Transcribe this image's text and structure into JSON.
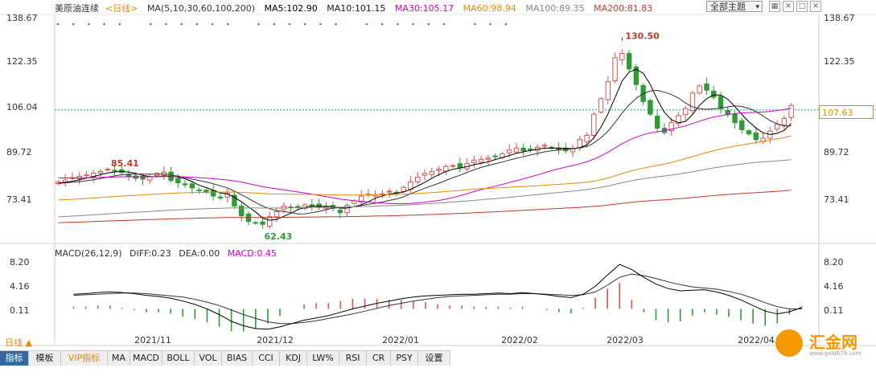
{
  "header": {
    "symbol": "美原油连续",
    "period_tag": "<日线>",
    "ma_label": "MA(5,10,30,60,100,200)",
    "ma_values": [
      {
        "text": "MA5:102.90",
        "color": "#000000"
      },
      {
        "text": "MA10:101.15",
        "color": "#1a1a1a"
      },
      {
        "text": "MA30:105.17",
        "color": "#cc00cc"
      },
      {
        "text": "MA60:98.94",
        "color": "#e58a00"
      },
      {
        "text": "MA100:89.35",
        "color": "#888888"
      },
      {
        "text": "MA200:81.83",
        "color": "#c0392b"
      }
    ],
    "topic_button": "全部主题",
    "toolbar_icons": [
      "grid-icon",
      "close-small-icon",
      "maximize-icon",
      "close-icon"
    ]
  },
  "price_axis": {
    "ticks": [
      "138.67",
      "122.35",
      "106.04",
      "89.72",
      "73.41"
    ]
  },
  "current_price": "107.63",
  "macd": {
    "label": "MACD(26,12,9)",
    "diff": "DIFF:0.23",
    "dea": "DEA:0.00",
    "macd": "MACD:0.45",
    "ticks": [
      "8.20",
      "4.16",
      "0.11"
    ]
  },
  "period_tab": "日线",
  "tabs": [
    "指标",
    "模板",
    "VIP指标",
    "MA",
    "MACD",
    "BOLL",
    "VOL",
    "BIAS",
    "CCI",
    "KDJ",
    "LW%",
    "RSI",
    "CR",
    "PSY",
    "设置"
  ],
  "watermark": {
    "name": "汇金网",
    "url": "www.gold678.com"
  },
  "colors": {
    "up": "#d9534f",
    "down": "#2e9b34",
    "ma5": "#000000",
    "ma10": "#333333",
    "ma30": "#cc00cc",
    "ma60": "#e58a00",
    "ma100": "#888888",
    "ma200": "#c0392b",
    "refline": "#2f8fa3",
    "dots": "#2f8fa3"
  },
  "chart_data": [
    {
      "type": "candlestick",
      "title": "美原油连续 日线",
      "x_labels": [
        "2021/11",
        "2021/12",
        "2022/01",
        "2022/02",
        "2022/03",
        "2022/04"
      ],
      "ylim": [
        62.43,
        138.67
      ],
      "y_ticks": [
        138.67,
        122.35,
        106.04,
        89.72,
        73.41
      ],
      "reference_line": 106.04,
      "annotations": [
        {
          "text": "130.50",
          "value": 130.5,
          "kind": "high"
        },
        {
          "text": "85.41",
          "value": 85.41,
          "kind": "high"
        },
        {
          "text": "62.43",
          "value": 62.43,
          "kind": "low"
        }
      ],
      "close_path": [
        80.5,
        81.2,
        82.0,
        82.5,
        83.0,
        83.6,
        84.2,
        85.0,
        84.5,
        83.8,
        82.6,
        81.8,
        81.5,
        82.4,
        83.5,
        84.0,
        81.0,
        80.2,
        79.5,
        78.4,
        77.6,
        76.8,
        75.5,
        74.8,
        76.5,
        72.0,
        68.5,
        66.5,
        66.0,
        65.5,
        68.2,
        70.0,
        72.0,
        71.5,
        71.8,
        72.4,
        72.0,
        71.5,
        71.8,
        71.2,
        69.6,
        72.2,
        73.8,
        75.5,
        76.2,
        76.0,
        76.3,
        77.2,
        76.8,
        78.6,
        80.5,
        82.2,
        83.5,
        84.2,
        85.0,
        86.0,
        86.3,
        85.5,
        87.0,
        88.2,
        88.5,
        89.0,
        89.5,
        90.5,
        91.8,
        92.5,
        91.5,
        92.0,
        92.8,
        93.5,
        92.5,
        91.8,
        91.5,
        92.2,
        95.5,
        97.0,
        104.5,
        110.0,
        116.0,
        124.5,
        126.0,
        120.5,
        115.0,
        109.0,
        104.5,
        99.5,
        98.0,
        101.5,
        104.0,
        106.5,
        112.0,
        114.5,
        113.0,
        110.5,
        106.5,
        104.5,
        101.5,
        99.0,
        97.5,
        95.5,
        96.0,
        98.5,
        101.0,
        103.0,
        107.6
      ],
      "moving_averages": {
        "MA5": 102.9,
        "MA10": 101.15,
        "MA30": 105.17,
        "MA60": 98.94,
        "MA100": 89.35,
        "MA200": 81.83
      }
    },
    {
      "type": "bar",
      "title": "MACD(26,12,9)",
      "ylim": [
        -4.5,
        8.2
      ],
      "y_ticks": [
        8.2,
        4.16,
        0.11
      ],
      "series": [
        {
          "name": "DIFF",
          "last": 0.23
        },
        {
          "name": "DEA",
          "last": 0.0
        },
        {
          "name": "MACD",
          "last": 0.45
        }
      ],
      "diff_path": [
        2.6,
        2.7,
        2.9,
        3.0,
        2.9,
        2.7,
        2.4,
        2.2,
        1.9,
        1.4,
        0.8,
        0.0,
        -1.0,
        -2.2,
        -3.0,
        -3.5,
        -3.6,
        -3.2,
        -2.6,
        -2.0,
        -1.6,
        -1.2,
        -0.6,
        0.0,
        0.5,
        1.0,
        1.4,
        1.8,
        2.1,
        2.3,
        2.4,
        2.5,
        2.6,
        2.6,
        2.7,
        2.8,
        2.7,
        2.9,
        2.7,
        2.5,
        2.2,
        2.0,
        2.6,
        4.0,
        6.0,
        7.9,
        7.0,
        5.6,
        4.4,
        3.6,
        3.2,
        3.3,
        3.4,
        3.0,
        2.4,
        1.6,
        0.6,
        -0.4,
        -0.9,
        -0.5,
        0.23
      ],
      "dea_path": [
        2.4,
        2.5,
        2.6,
        2.7,
        2.8,
        2.8,
        2.7,
        2.5,
        2.3,
        2.1,
        1.7,
        1.2,
        0.6,
        -0.2,
        -1.0,
        -1.7,
        -2.3,
        -2.6,
        -2.6,
        -2.4,
        -2.1,
        -1.7,
        -1.3,
        -0.9,
        -0.4,
        0.1,
        0.6,
        1.0,
        1.4,
        1.7,
        2.0,
        2.2,
        2.3,
        2.4,
        2.5,
        2.6,
        2.6,
        2.7,
        2.7,
        2.6,
        2.5,
        2.4,
        2.5,
        3.0,
        4.2,
        5.6,
        6.2,
        5.9,
        5.4,
        4.8,
        4.3,
        3.9,
        3.7,
        3.5,
        3.1,
        2.6,
        1.9,
        1.1,
        0.4,
        0.0,
        0.0
      ]
    }
  ]
}
